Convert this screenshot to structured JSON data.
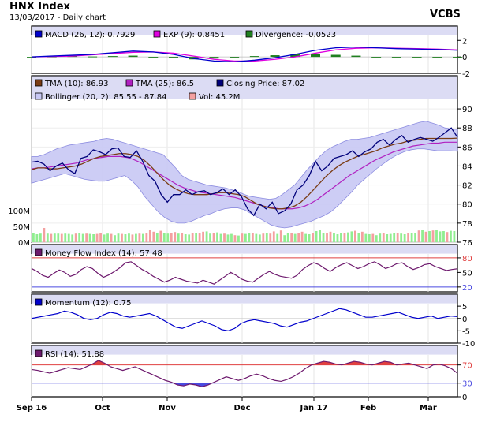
{
  "header": {
    "title": "HNX Index",
    "subtitle": "13/03/2017 - Daily chart",
    "brand": "VCBS"
  },
  "x_ticks": [
    "Sep 16",
    "Oct",
    "Nov",
    "Dec",
    "Jan 17",
    "Feb",
    "Mar"
  ],
  "colors": {
    "price": "#00007a",
    "tma10": "#7a3c14",
    "tma25": "#b020c0",
    "band_fill": "#c8c8f4",
    "band_edge": "#8c8ce0",
    "vol_up": "#90ee90",
    "vol_down": "#f4a0a0",
    "macd": "#0000cc",
    "exp": "#e000e0",
    "divergence": "#208020",
    "mfi": "#6e1a6e",
    "momentum": "#0000cc",
    "rsi": "#6e1a6e",
    "rsi_upper": "#e04040",
    "rsi_lower": "#4a4ae0",
    "panel_header": "#dcdcf4"
  },
  "chart_data": [
    {
      "type": "line",
      "name": "macd-panel",
      "legend": [
        {
          "label": "MACD (26, 12): 0.7929",
          "color": "#0000cc"
        },
        {
          "label": "EXP (9): 0.8451",
          "color": "#e000e0"
        },
        {
          "label": "Divergence: -0.0523",
          "color": "#208020"
        }
      ],
      "ylim": [
        -2,
        2.6
      ],
      "yticks": [
        -2,
        0,
        2
      ],
      "series": [
        {
          "name": "MACD (26, 12)",
          "values": [
            0.0,
            0.1,
            0.2,
            0.3,
            0.5,
            0.7,
            0.6,
            0.3,
            -0.2,
            -0.5,
            -0.6,
            -0.4,
            -0.1,
            0.3,
            0.8,
            1.1,
            1.2,
            1.1,
            1.0,
            0.95,
            0.9,
            0.8
          ]
        },
        {
          "name": "EXP (9)",
          "values": [
            0.0,
            0.05,
            0.1,
            0.25,
            0.4,
            0.55,
            0.6,
            0.45,
            0.1,
            -0.3,
            -0.5,
            -0.5,
            -0.3,
            0.0,
            0.45,
            0.85,
            1.05,
            1.1,
            1.05,
            1.0,
            0.95,
            0.85
          ]
        }
      ],
      "divergence": [
        0.0,
        0.05,
        0.1,
        0.05,
        0.1,
        0.15,
        0.0,
        -0.15,
        -0.3,
        -0.2,
        -0.1,
        0.1,
        0.2,
        0.3,
        0.35,
        0.25,
        0.15,
        0.0,
        -0.05,
        -0.05,
        -0.05,
        -0.05
      ]
    },
    {
      "type": "line",
      "name": "price-panel",
      "legend": [
        {
          "label": "TMA (10): 86.93",
          "color": "#7a3c14"
        },
        {
          "label": "TMA (25): 86.5",
          "color": "#b020c0"
        },
        {
          "label": "Closing Price: 87.02",
          "color": "#00007a"
        },
        {
          "label": "Bollinger (20, 2): 85.55 - 87.84",
          "color": "#c8c8f4"
        },
        {
          "label": "Vol: 45.2M",
          "color": "#f4a0a0"
        }
      ],
      "ylim": [
        76,
        91
      ],
      "yticks": [
        76,
        78,
        80,
        82,
        84,
        86,
        88,
        90
      ],
      "vol_ticks": [
        {
          "value": 0,
          "label": "0M"
        },
        {
          "value": 50,
          "label": "50M"
        },
        {
          "value": 100,
          "label": "100M"
        }
      ],
      "vol_max": 150,
      "series": [
        {
          "name": "Closing Price",
          "values": [
            84.4,
            84.5,
            84.2,
            83.5,
            84.0,
            84.3,
            83.6,
            83.2,
            84.8,
            85.0,
            85.7,
            85.5,
            85.2,
            85.8,
            85.9,
            85.0,
            84.9,
            85.6,
            84.5,
            83.0,
            82.4,
            81.0,
            80.2,
            81.0,
            81.0,
            81.5,
            81.0,
            81.3,
            81.4,
            81.0,
            81.2,
            81.6,
            81.0,
            81.5,
            80.8,
            79.5,
            78.8,
            80.0,
            79.5,
            80.2,
            79.0,
            79.3,
            80.0,
            81.5,
            82.0,
            83.0,
            84.5,
            83.5,
            84.0,
            84.8,
            85.0,
            85.2,
            85.6,
            85.0,
            85.5,
            85.8,
            86.5,
            86.8,
            86.2,
            86.8,
            87.2,
            86.5,
            86.8,
            87.0,
            86.8,
            86.6,
            87.0,
            87.5,
            88.0,
            87.02
          ]
        },
        {
          "name": "TMA (10)",
          "values": [
            83.6,
            83.8,
            83.8,
            83.7,
            83.7,
            83.8,
            83.9,
            84.0,
            84.2,
            84.5,
            84.8,
            85.0,
            85.1,
            85.2,
            85.3,
            85.3,
            85.2,
            85.0,
            84.6,
            84.0,
            83.3,
            82.6,
            82.0,
            81.6,
            81.3,
            81.1,
            81.0,
            81.0,
            81.0,
            81.1,
            81.2,
            81.2,
            81.1,
            81.0,
            80.8,
            80.4,
            80.0,
            79.8,
            79.6,
            79.5,
            79.5,
            79.6,
            79.8,
            80.2,
            80.8,
            81.5,
            82.2,
            82.9,
            83.5,
            84.0,
            84.4,
            84.7,
            85.0,
            85.2,
            85.4,
            85.6,
            85.9,
            86.1,
            86.3,
            86.4,
            86.6,
            86.7,
            86.8,
            86.9,
            86.9,
            86.9,
            86.9,
            86.9,
            86.93
          ]
        },
        {
          "name": "TMA (25)",
          "values": [
            83.7,
            83.8,
            83.8,
            83.9,
            84.0,
            84.1,
            84.2,
            84.3,
            84.5,
            84.7,
            84.8,
            84.9,
            85.0,
            85.0,
            85.0,
            84.9,
            84.7,
            84.4,
            84.0,
            83.6,
            83.2,
            82.8,
            82.4,
            82.0,
            81.7,
            81.5,
            81.3,
            81.2,
            81.1,
            81.0,
            80.9,
            80.8,
            80.7,
            80.5,
            80.3,
            80.1,
            79.9,
            79.7,
            79.6,
            79.5,
            79.5,
            79.5,
            79.6,
            79.8,
            80.1,
            80.5,
            81.0,
            81.5,
            82.0,
            82.5,
            83.0,
            83.4,
            83.8,
            84.2,
            84.6,
            84.9,
            85.2,
            85.5,
            85.7,
            85.9,
            86.1,
            86.2,
            86.3,
            86.4,
            86.4,
            86.5,
            86.5,
            86.5
          ]
        },
        {
          "name": "Bollinger upper",
          "values": [
            85.0,
            85.0,
            85.2,
            85.5,
            85.8,
            86.0,
            86.2,
            86.3,
            86.4,
            86.5,
            86.6,
            86.8,
            86.9,
            86.8,
            86.6,
            86.4,
            86.2,
            86.0,
            85.8,
            85.6,
            85.4,
            85.2,
            84.5,
            83.8,
            83.0,
            82.6,
            82.4,
            82.2,
            82.0,
            81.9,
            81.8,
            81.7,
            81.5,
            81.3,
            81.0,
            80.8,
            80.7,
            80.6,
            80.5,
            80.6,
            81.0,
            81.5,
            82.0,
            82.8,
            83.6,
            84.3,
            85.0,
            85.6,
            86.0,
            86.3,
            86.6,
            86.8,
            86.8,
            86.9,
            87.0,
            87.2,
            87.4,
            87.6,
            87.8,
            88.0,
            88.2,
            88.4,
            88.6,
            88.7,
            88.5,
            88.3,
            88.0,
            87.9,
            87.84
          ]
        },
        {
          "name": "Bollinger lower",
          "values": [
            82.2,
            82.4,
            82.6,
            82.8,
            83.0,
            83.2,
            83.0,
            82.8,
            82.6,
            82.5,
            82.4,
            82.4,
            82.6,
            82.8,
            83.0,
            82.5,
            81.8,
            80.8,
            80.0,
            79.2,
            78.6,
            78.2,
            78.0,
            78.0,
            78.2,
            78.5,
            78.8,
            79.0,
            79.3,
            79.5,
            79.6,
            79.6,
            79.4,
            79.0,
            78.6,
            78.2,
            77.8,
            77.6,
            77.5,
            77.6,
            77.8,
            78.0,
            78.2,
            78.5,
            78.8,
            79.2,
            79.8,
            80.5,
            81.2,
            82.0,
            82.6,
            83.2,
            83.8,
            84.3,
            84.8,
            85.2,
            85.5,
            85.7,
            85.8,
            85.8,
            85.7,
            85.6,
            85.6,
            85.6,
            85.55
          ]
        }
      ],
      "volume": [
        28,
        25,
        27,
        45,
        27,
        26,
        27,
        27,
        26,
        27,
        26,
        24,
        27,
        28,
        26,
        27,
        26,
        25,
        26,
        28,
        24,
        27,
        26,
        22,
        27,
        26,
        25,
        27,
        24,
        26,
        27,
        26,
        28,
        39,
        33,
        28,
        36,
        30,
        27,
        28,
        32,
        27,
        30,
        25,
        24,
        29,
        28,
        30,
        33,
        34,
        27,
        28,
        31,
        26,
        27,
        24,
        26,
        22,
        21,
        27,
        26,
        29,
        28,
        26,
        24,
        27,
        28,
        27,
        34,
        26,
        37,
        22,
        28,
        28,
        26,
        30,
        33,
        26,
        25,
        28,
        35,
        38,
        29,
        30,
        33,
        30,
        25,
        28,
        30,
        31,
        34,
        36,
        30,
        33,
        26,
        25,
        26,
        22,
        27,
        28,
        25,
        26,
        28,
        30,
        27,
        25,
        28,
        29,
        30,
        37,
        38,
        33,
        35,
        37,
        38,
        34,
        35,
        32,
        36,
        35
      ],
      "volume_up": [
        1,
        1,
        1,
        0,
        1,
        0,
        1,
        1,
        0,
        1,
        1,
        1,
        0,
        1,
        1,
        0,
        1,
        1,
        0,
        0,
        1,
        1,
        0,
        1,
        1,
        0,
        1,
        1,
        0,
        1,
        0,
        1,
        0,
        0,
        0,
        1,
        0,
        1,
        1,
        0,
        0,
        1,
        0,
        1,
        1,
        0,
        1,
        0,
        0,
        1,
        1,
        0,
        1,
        1,
        0,
        1,
        1,
        0,
        1,
        0,
        1,
        1,
        0,
        1,
        1,
        0,
        1,
        0,
        0,
        1,
        0,
        1,
        1,
        0,
        1,
        0,
        0,
        1,
        1,
        0,
        1,
        1,
        1,
        0,
        0,
        1,
        1,
        1,
        0,
        1,
        1,
        0,
        1,
        0,
        1,
        1,
        0,
        1,
        1,
        0,
        1,
        1,
        1,
        0,
        1,
        1,
        0,
        1,
        1,
        0,
        1,
        0,
        1,
        0,
        1,
        1,
        1,
        0,
        1,
        1
      ]
    },
    {
      "type": "line",
      "name": "mfi-panel",
      "legend": [
        {
          "label": "Money Flow Index (14): 57.48",
          "color": "#6e1a6e"
        }
      ],
      "ylim": [
        10,
        88
      ],
      "yticks": [
        20,
        50,
        80
      ],
      "ref_lines": [
        20,
        80
      ],
      "series": [
        {
          "name": "Money Flow Index (14)",
          "values": [
            58,
            52,
            44,
            40,
            48,
            55,
            50,
            42,
            46,
            56,
            62,
            58,
            48,
            40,
            45,
            52,
            60,
            70,
            72,
            64,
            56,
            50,
            42,
            36,
            30,
            34,
            40,
            36,
            32,
            30,
            28,
            34,
            30,
            26,
            34,
            42,
            50,
            44,
            36,
            32,
            30,
            38,
            46,
            52,
            46,
            42,
            40,
            38,
            44,
            56,
            64,
            70,
            66,
            58,
            52,
            60,
            66,
            70,
            64,
            58,
            62,
            68,
            72,
            66,
            58,
            62,
            68,
            70,
            62,
            56,
            60,
            66,
            68,
            62,
            58,
            54,
            56,
            57.48
          ]
        }
      ]
    },
    {
      "type": "line",
      "name": "momentum-panel",
      "legend": [
        {
          "label": "Momentum (12): 0.75",
          "color": "#0000cc"
        }
      ],
      "ylim": [
        -10,
        6
      ],
      "yticks": [
        -10,
        -5,
        0,
        5
      ],
      "series": [
        {
          "name": "Momentum (12)",
          "values": [
            0,
            0.5,
            1,
            1.5,
            2,
            3,
            2.5,
            1.5,
            0,
            -0.5,
            0,
            1.5,
            2.5,
            2,
            1,
            0.5,
            1,
            1.5,
            2,
            1,
            -0.5,
            -2,
            -3.5,
            -4,
            -3,
            -2,
            -1,
            -2,
            -3,
            -4.5,
            -5,
            -4,
            -2,
            -1,
            -0.5,
            -1,
            -1.5,
            -2,
            -3,
            -3.5,
            -2.5,
            -1.5,
            -1,
            0,
            1,
            2,
            3,
            4,
            3.5,
            2.5,
            1.5,
            0.5,
            0.5,
            1,
            1.5,
            2,
            2.5,
            1.5,
            0.5,
            0,
            0.5,
            1,
            0,
            0.5,
            1,
            0.75
          ]
        }
      ]
    },
    {
      "type": "line",
      "name": "rsi-panel",
      "legend": [
        {
          "label": "RSI (14): 51.88",
          "color": "#6e1a6e"
        }
      ],
      "ylim": [
        0,
        92
      ],
      "yticks": [
        0,
        30,
        70
      ],
      "ref_lines": [
        30,
        70
      ],
      "series": [
        {
          "name": "RSI (14)",
          "values": [
            60,
            58,
            55,
            52,
            56,
            60,
            64,
            62,
            60,
            66,
            72,
            80,
            74,
            66,
            62,
            58,
            62,
            66,
            60,
            54,
            48,
            42,
            36,
            32,
            26,
            24,
            28,
            26,
            22,
            26,
            32,
            38,
            44,
            40,
            36,
            40,
            46,
            50,
            46,
            40,
            36,
            34,
            38,
            44,
            52,
            62,
            70,
            74,
            78,
            76,
            72,
            70,
            74,
            78,
            76,
            72,
            70,
            74,
            78,
            76,
            70,
            72,
            74,
            70,
            66,
            62,
            70,
            72,
            68,
            62,
            51.88
          ]
        }
      ]
    }
  ]
}
